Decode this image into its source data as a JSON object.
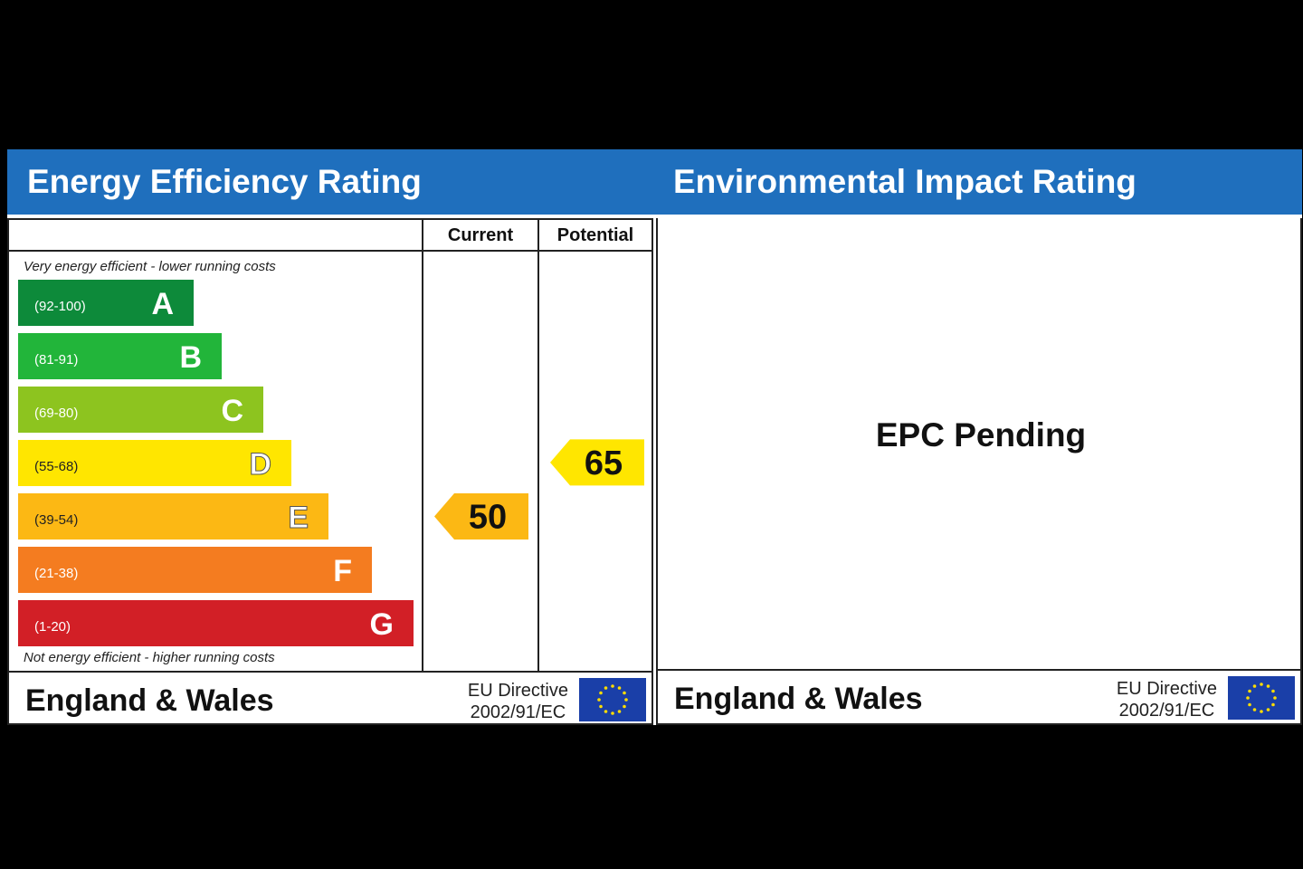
{
  "energy": {
    "title": "Energy Efficiency Rating",
    "col_current": "Current",
    "col_potential": "Potential",
    "top_note": "Very energy efficient - lower running costs",
    "bottom_note": "Not energy efficient - higher running costs",
    "footer_country": "England & Wales",
    "footer_directive_1": "EU Directive",
    "footer_directive_2": "2002/91/EC"
  },
  "environment": {
    "title": "Environmental Impact Rating",
    "status": "EPC Pending",
    "footer_country": "England & Wales",
    "footer_directive_1": "EU Directive",
    "footer_directive_2": "2002/91/EC"
  },
  "chart_data": {
    "type": "bar",
    "categories": [
      "A",
      "B",
      "C",
      "D",
      "E",
      "F",
      "G"
    ],
    "ranges": [
      "(92-100)",
      "(81-91)",
      "(69-80)",
      "(55-68)",
      "(39-54)",
      "(21-38)",
      "(1-20)"
    ],
    "colors": [
      "#0d8a3a",
      "#22b53a",
      "#8dc41f",
      "#ffe600",
      "#fcb814",
      "#f47c20",
      "#d21f26"
    ],
    "current": {
      "value": "50",
      "band": "E",
      "color": "#fcb814"
    },
    "potential": {
      "value": "65",
      "band": "D",
      "color": "#ffe600"
    }
  }
}
